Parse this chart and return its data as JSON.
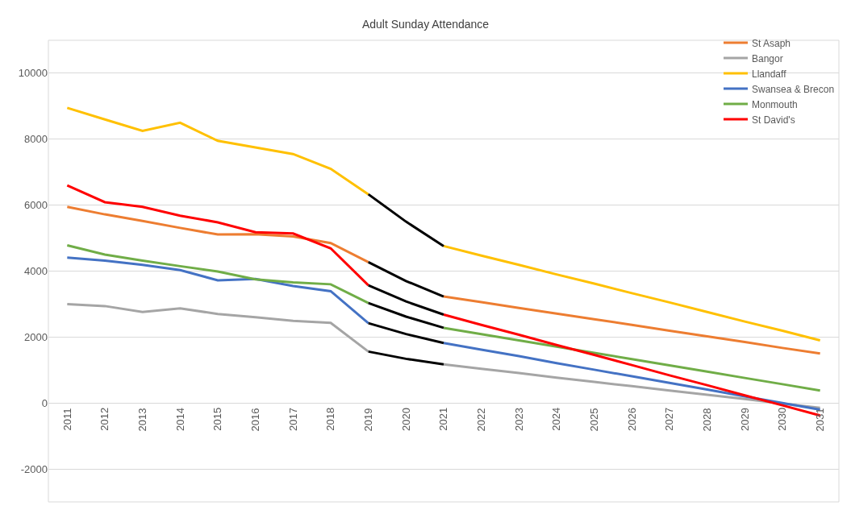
{
  "chart_data": {
    "type": "line",
    "title": "Adult Sunday Attendance",
    "categories": [
      "2011",
      "2012",
      "2013",
      "2014",
      "2015",
      "2016",
      "2017",
      "2018",
      "2019",
      "2020",
      "2021",
      "2022",
      "2023",
      "2024",
      "2025",
      "2026",
      "2027",
      "2028",
      "2029",
      "2030",
      "2031"
    ],
    "series": [
      {
        "name": "St Asaph",
        "color": "#ed7d31",
        "values": [
          5950,
          5720,
          5520,
          5310,
          5110,
          5120,
          5050,
          4850,
          4270,
          null,
          3230,
          3060,
          2880,
          2710,
          2540,
          2370,
          2190,
          2020,
          1850,
          1670,
          1500
        ]
      },
      {
        "name": "Bangor",
        "color": "#a5a5a5",
        "values": [
          3000,
          2940,
          2760,
          2870,
          2700,
          2600,
          2490,
          2430,
          1560,
          null,
          1170,
          1040,
          910,
          770,
          640,
          510,
          380,
          250,
          120,
          -20,
          -150
        ]
      },
      {
        "name": "Llandaff",
        "color": "#ffc000",
        "values": [
          8950,
          8600,
          8250,
          8500,
          7950,
          7750,
          7550,
          7100,
          6330,
          null,
          4760,
          4470,
          4190,
          3900,
          3620,
          3330,
          3050,
          2760,
          2470,
          2190,
          1900
        ]
      },
      {
        "name": "Swansea & Brecon",
        "color": "#4472c4",
        "values": [
          4410,
          4320,
          4190,
          4030,
          3720,
          3760,
          3550,
          3390,
          2420,
          null,
          1820,
          1620,
          1420,
          1210,
          1010,
          810,
          610,
          410,
          200,
          0,
          -200
        ]
      },
      {
        "name": "Monmouth",
        "color": "#70ad47",
        "values": [
          4780,
          4500,
          4320,
          4150,
          3990,
          3750,
          3660,
          3600,
          3030,
          null,
          2280,
          2090,
          1900,
          1710,
          1520,
          1330,
          1140,
          950,
          760,
          570,
          380
        ]
      },
      {
        "name": "St David's",
        "color": "#ff0000",
        "values": [
          6600,
          6090,
          5950,
          5680,
          5480,
          5180,
          5140,
          4690,
          3570,
          null,
          2680,
          2370,
          2070,
          1760,
          1460,
          1150,
          840,
          540,
          230,
          -70,
          -380
        ]
      },
      {
        "color": "#000000",
        "values": [
          null,
          null,
          null,
          null,
          null,
          null,
          null,
          null,
          4270,
          3700,
          3230,
          null,
          null,
          null,
          null,
          null,
          null,
          null,
          null,
          null,
          null
        ]
      },
      {
        "color": "#000000",
        "values": [
          null,
          null,
          null,
          null,
          null,
          null,
          null,
          null,
          1560,
          1340,
          1170,
          null,
          null,
          null,
          null,
          null,
          null,
          null,
          null,
          null,
          null
        ]
      },
      {
        "color": "#000000",
        "values": [
          null,
          null,
          null,
          null,
          null,
          null,
          null,
          null,
          6330,
          5500,
          4760,
          null,
          null,
          null,
          null,
          null,
          null,
          null,
          null,
          null,
          null
        ]
      },
      {
        "color": "#000000",
        "values": [
          null,
          null,
          null,
          null,
          null,
          null,
          null,
          null,
          2420,
          2090,
          1820,
          null,
          null,
          null,
          null,
          null,
          null,
          null,
          null,
          null,
          null
        ]
      },
      {
        "color": "#000000",
        "values": [
          null,
          null,
          null,
          null,
          null,
          null,
          null,
          null,
          3030,
          2620,
          2280,
          null,
          null,
          null,
          null,
          null,
          null,
          null,
          null,
          null,
          null
        ]
      },
      {
        "color": "#000000",
        "values": [
          null,
          null,
          null,
          null,
          null,
          null,
          null,
          null,
          3570,
          3080,
          2680,
          null,
          null,
          null,
          null,
          null,
          null,
          null,
          null,
          null,
          null
        ]
      }
    ],
    "ylim": [
      -3000,
      11000
    ],
    "yticks": [
      -2000,
      0,
      2000,
      4000,
      6000,
      8000,
      10000
    ],
    "grid": "y",
    "legend": "top right",
    "marker": "none",
    "line_style": "solid"
  }
}
